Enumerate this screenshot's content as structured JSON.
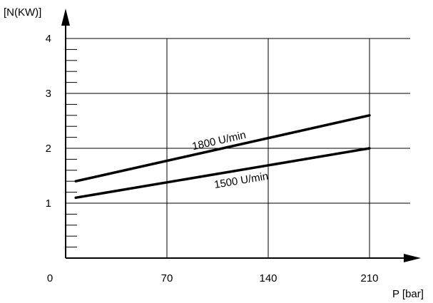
{
  "chart_data": {
    "type": "line",
    "ylabel": "[N(KW)]",
    "xlabel": "P [bar]",
    "xlim": [
      0,
      240
    ],
    "ylim": [
      0,
      4.2
    ],
    "x_ticks": [
      0,
      70,
      140,
      210
    ],
    "y_ticks": [
      1,
      2,
      3,
      4
    ],
    "y_minor_step": 0.2,
    "grid": true,
    "series": [
      {
        "name": "1800 U/min",
        "x": [
          7,
          210
        ],
        "y": [
          1.4,
          2.6
        ]
      },
      {
        "name": "1500 U/min",
        "x": [
          7,
          210
        ],
        "y": [
          1.1,
          2.0
        ]
      }
    ]
  }
}
